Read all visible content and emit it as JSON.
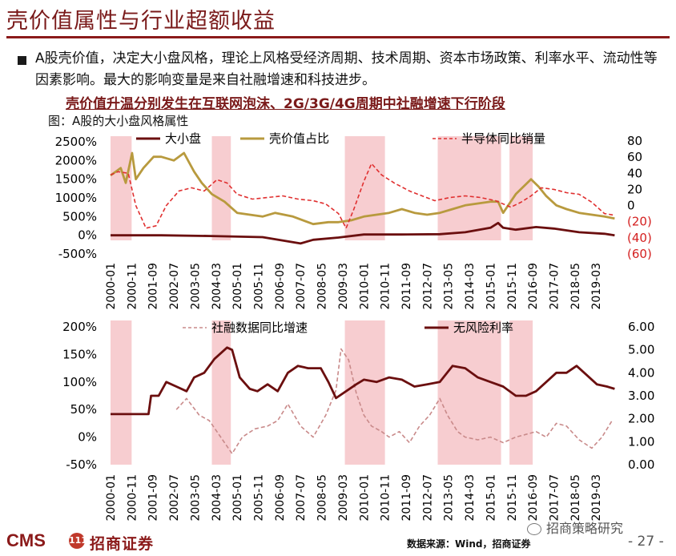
{
  "page": {
    "title": "壳价值属性与行业超额收益",
    "bullet": "A股壳价值，决定大小盘风格，理论上风格受经济周期、技术周期、资本市场政策、利率水平、流动性等因素影响。最大的影响变量是来自社融增速和科技进步。",
    "bold_line": "壳价值升温分别发生在互联网泡沫、2G/3G/4G周期中社融增速下行阶段",
    "caption": "图：A股的大小盘风格属性",
    "footer": {
      "logo": "CMS",
      "logo_badge": "111",
      "company": "招商证券",
      "source": "数据来源：Wind，招商证券",
      "wechat": "招商策略研究",
      "page_num": "- 27 -"
    }
  },
  "chart_data": [
    {
      "type": "line",
      "legend_position": "top",
      "x_ticks": [
        "2000-01",
        "2000-11",
        "2001-09",
        "2002-07",
        "2003-05",
        "2004-03",
        "2005-01",
        "2005-11",
        "2006-09",
        "2007-07",
        "2008-05",
        "2009-03",
        "2010-01",
        "2010-11",
        "2011-09",
        "2012-07",
        "2013-05",
        "2014-03",
        "2015-01",
        "2015-11",
        "2016-09",
        "2017-07",
        "2018-05",
        "2019-03"
      ],
      "y_left": {
        "ticks": [
          "2500%",
          "2000%",
          "1500%",
          "1000%",
          "500%",
          "0%",
          "-500%"
        ],
        "range": [
          -500,
          2500
        ]
      },
      "y_right": {
        "ticks": [
          "80",
          "60",
          "40",
          "20",
          "0",
          "(20)",
          "(40)",
          "(60)"
        ],
        "range": [
          -60,
          80
        ]
      },
      "highlight_periods": [
        [
          "2000-01",
          "2000-11"
        ],
        [
          "2004-01",
          "2004-10"
        ],
        [
          "2009-04",
          "2010-11"
        ],
        [
          "2012-12",
          "2015-06"
        ],
        [
          "2015-10",
          "2016-09"
        ]
      ],
      "series": [
        {
          "name": "大小盘",
          "axis": "left",
          "color": "#6b0f0f",
          "style": "solid",
          "t": [
            2000.0,
            2002.0,
            2004.0,
            2006.0,
            2007.5,
            2008.0,
            2009.0,
            2010.0,
            2011.5,
            2013.0,
            2014.0,
            2015.0,
            2015.3,
            2015.5,
            2016.0,
            2016.8,
            2017.5,
            2018.5,
            2019.5,
            2019.9
          ],
          "values": [
            0,
            0,
            -20,
            -50,
            -220,
            -120,
            -60,
            20,
            20,
            30,
            80,
            200,
            330,
            200,
            150,
            220,
            180,
            80,
            40,
            0
          ]
        },
        {
          "name": "壳价值占比",
          "axis": "left",
          "color": "#b89a3e",
          "style": "solid",
          "t": [
            2000.0,
            2000.4,
            2000.6,
            2000.85,
            2001.0,
            2001.3,
            2001.7,
            2002.0,
            2002.5,
            2002.9,
            2003.3,
            2003.6,
            2004.0,
            2004.5,
            2005.0,
            2006.0,
            2006.5,
            2007.2,
            2008.0,
            2008.6,
            2009.0,
            2009.5,
            2010.0,
            2011.0,
            2011.5,
            2012.0,
            2012.5,
            2013.0,
            2013.5,
            2014.0,
            2014.5,
            2015.0,
            2015.3,
            2015.5,
            2016.0,
            2016.3,
            2016.6,
            2016.9,
            2017.2,
            2017.6,
            2018.0,
            2018.5,
            2019.0,
            2019.5,
            2019.9
          ],
          "values": [
            1600,
            1800,
            1400,
            2200,
            1500,
            1800,
            2100,
            2100,
            2000,
            2200,
            1700,
            1400,
            1100,
            900,
            600,
            500,
            600,
            500,
            300,
            350,
            350,
            400,
            500,
            600,
            700,
            600,
            550,
            600,
            700,
            800,
            850,
            900,
            900,
            600,
            1100,
            1300,
            1500,
            1300,
            1050,
            800,
            700,
            600,
            550,
            500,
            450
          ]
        },
        {
          "name": "半导体同比销量",
          "axis": "right",
          "color": "#e03030",
          "style": "dashed",
          "t": [
            2000.0,
            2000.3,
            2000.7,
            2001.0,
            2001.4,
            2001.8,
            2002.2,
            2002.7,
            2003.2,
            2003.7,
            2004.2,
            2004.6,
            2005.0,
            2005.6,
            2006.2,
            2006.8,
            2007.4,
            2008.0,
            2008.5,
            2009.0,
            2009.3,
            2009.6,
            2010.0,
            2010.3,
            2010.7,
            2011.2,
            2011.8,
            2012.3,
            2012.8,
            2013.4,
            2014.0,
            2014.6,
            2015.2,
            2015.8,
            2016.2,
            2016.6,
            2017.0,
            2017.5,
            2018.0,
            2018.5,
            2019.0,
            2019.5,
            2019.9
          ],
          "values": [
            38,
            42,
            40,
            0,
            -28,
            -25,
            0,
            18,
            22,
            18,
            32,
            28,
            14,
            8,
            10,
            12,
            8,
            6,
            2,
            -10,
            -28,
            -5,
            30,
            52,
            38,
            28,
            18,
            12,
            6,
            10,
            12,
            10,
            6,
            -2,
            4,
            12,
            22,
            20,
            16,
            14,
            4,
            -10,
            -12
          ]
        }
      ]
    },
    {
      "type": "line",
      "legend_position": "top",
      "x_ticks": [
        "2000-01",
        "2000-11",
        "2001-09",
        "2002-07",
        "2003-05",
        "2004-03",
        "2005-01",
        "2005-11",
        "2006-09",
        "2007-07",
        "2008-05",
        "2009-03",
        "2010-01",
        "2010-11",
        "2011-09",
        "2012-07",
        "2013-05",
        "2014-03",
        "2015-01",
        "2015-11",
        "2016-09",
        "2017-07",
        "2018-05",
        "2019-03"
      ],
      "y_left": {
        "ticks": [
          "200%",
          "150%",
          "100%",
          "50%",
          "0%",
          "-50%"
        ],
        "range": [
          -50,
          200
        ]
      },
      "y_right": {
        "ticks": [
          "6.00",
          "5.00",
          "4.00",
          "3.00",
          "2.00",
          "1.00",
          "0.00"
        ],
        "range": [
          0,
          6
        ]
      },
      "highlight_periods": [
        [
          "2000-01",
          "2000-11"
        ],
        [
          "2004-01",
          "2004-10"
        ],
        [
          "2009-04",
          "2010-11"
        ],
        [
          "2012-12",
          "2015-06"
        ],
        [
          "2015-10",
          "2016-09"
        ]
      ],
      "series": [
        {
          "name": "社融数据同比增速",
          "axis": "left",
          "color": "#c98a8a",
          "style": "dashed",
          "t": [
            2002.6,
            2003.0,
            2003.5,
            2003.9,
            2004.2,
            2004.5,
            2004.8,
            2005.2,
            2005.7,
            2006.2,
            2006.6,
            2007.0,
            2007.5,
            2008.0,
            2008.5,
            2008.9,
            2009.1,
            2009.4,
            2009.7,
            2010.0,
            2010.3,
            2010.7,
            2011.0,
            2011.4,
            2011.8,
            2012.2,
            2012.6,
            2013.0,
            2013.3,
            2013.7,
            2014.0,
            2014.5,
            2015.0,
            2015.5,
            2016.0,
            2016.4,
            2016.8,
            2017.2,
            2017.6,
            2018.0,
            2018.5,
            2019.0,
            2019.4,
            2019.8
          ],
          "values": [
            50,
            70,
            40,
            30,
            10,
            -10,
            -30,
            0,
            15,
            20,
            30,
            60,
            20,
            0,
            40,
            85,
            160,
            140,
            80,
            40,
            20,
            10,
            0,
            10,
            -10,
            20,
            40,
            70,
            40,
            10,
            0,
            -5,
            0,
            -10,
            0,
            5,
            10,
            0,
            25,
            20,
            -5,
            -20,
            0,
            30
          ]
        },
        {
          "name": "无风险利率",
          "axis": "right",
          "color": "#6b0f0f",
          "style": "solid",
          "t": [
            2000.0,
            2001.5,
            2001.6,
            2001.9,
            2002.2,
            2002.6,
            2003.0,
            2003.3,
            2003.7,
            2004.1,
            2004.6,
            2004.8,
            2005.1,
            2005.5,
            2005.8,
            2006.2,
            2006.6,
            2007.0,
            2007.4,
            2007.8,
            2008.3,
            2008.6,
            2008.9,
            2009.3,
            2009.7,
            2010.0,
            2010.5,
            2011.0,
            2011.5,
            2012.0,
            2012.5,
            2013.0,
            2013.5,
            2014.0,
            2014.5,
            2015.0,
            2015.5,
            2016.0,
            2016.4,
            2016.8,
            2017.2,
            2017.6,
            2018.0,
            2018.4,
            2018.8,
            2019.2,
            2019.6,
            2019.9
          ],
          "values": [
            2.2,
            2.2,
            3.0,
            3.0,
            3.6,
            3.4,
            3.2,
            3.8,
            4.0,
            4.6,
            5.1,
            5.0,
            3.8,
            3.3,
            3.2,
            3.5,
            3.2,
            4.0,
            4.3,
            4.2,
            4.2,
            3.6,
            2.9,
            3.2,
            3.5,
            3.7,
            3.6,
            3.8,
            3.7,
            3.4,
            3.5,
            3.6,
            4.3,
            4.2,
            3.8,
            3.6,
            3.4,
            3.0,
            3.0,
            3.2,
            3.6,
            4.0,
            4.0,
            4.3,
            3.9,
            3.5,
            3.4,
            3.3
          ]
        }
      ]
    }
  ]
}
